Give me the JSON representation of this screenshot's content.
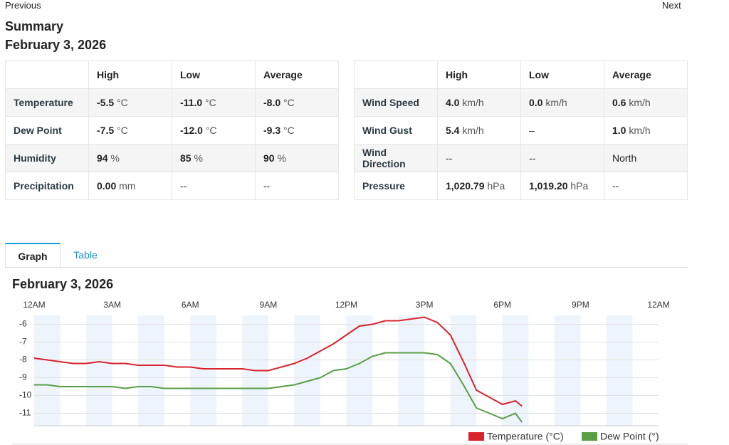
{
  "nav": {
    "previous": "Previous",
    "next": "Next"
  },
  "summary": {
    "title": "Summary",
    "date": "February 3, 2026"
  },
  "table_left": {
    "header": [
      "High",
      "Low",
      "Average"
    ],
    "rows": [
      {
        "label": "Temperature",
        "cells": [
          {
            "value": "-5.5",
            "unit": "°C"
          },
          {
            "value": "-11.0",
            "unit": "°C"
          },
          {
            "value": "-8.0",
            "unit": "°C"
          }
        ]
      },
      {
        "label": "Dew Point",
        "cells": [
          {
            "value": "-7.5",
            "unit": "°C"
          },
          {
            "value": "-12.0",
            "unit": "°C"
          },
          {
            "value": "-9.3",
            "unit": "°C"
          }
        ]
      },
      {
        "label": "Humidity",
        "cells": [
          {
            "value": "94",
            "unit": "%"
          },
          {
            "value": "85",
            "unit": "%"
          },
          {
            "value": "90",
            "unit": "%"
          }
        ]
      },
      {
        "label": "Precipitation",
        "cells": [
          {
            "value": "0.00",
            "unit": "mm"
          },
          {
            "value": "--"
          },
          {
            "value": "--"
          }
        ]
      }
    ]
  },
  "table_right": {
    "header": [
      "High",
      "Low",
      "Average"
    ],
    "rows": [
      {
        "label": "Wind Speed",
        "cells": [
          {
            "value": "4.0",
            "unit": "km/h"
          },
          {
            "value": "0.0",
            "unit": "km/h"
          },
          {
            "value": "0.6",
            "unit": "km/h"
          }
        ]
      },
      {
        "label": "Wind Gust",
        "cells": [
          {
            "value": "5.4",
            "unit": "km/h"
          },
          {
            "value": "–"
          },
          {
            "value": "1.0",
            "unit": "km/h"
          }
        ]
      },
      {
        "label": "Wind Direction",
        "cells": [
          {
            "value": "--"
          },
          {
            "value": "--"
          },
          {
            "value": "North"
          }
        ]
      },
      {
        "label": "Pressure",
        "cells": [
          {
            "value": "1,020.79",
            "unit": "hPa"
          },
          {
            "value": "1,019.20",
            "unit": "hPa"
          },
          {
            "value": "--"
          }
        ]
      }
    ]
  },
  "tabs": [
    "Graph",
    "Table"
  ],
  "graph": {
    "type": "line",
    "title": "February 3, 2026",
    "x": [
      0,
      0.5,
      1,
      1.5,
      2,
      2.5,
      3,
      3.5,
      4,
      4.5,
      5,
      5.5,
      6,
      6.5,
      7,
      7.5,
      8,
      8.5,
      9,
      9.5,
      10,
      10.5,
      11,
      11.5,
      12,
      12.5,
      13,
      13.5,
      14,
      14.5,
      15,
      15.5,
      16,
      16.5,
      17,
      17.5,
      18,
      18.5,
      18.75
    ],
    "xlim": [
      0,
      24
    ],
    "xticks": [
      {
        "value": 0,
        "label": "12AM"
      },
      {
        "value": 3,
        "label": "3AM"
      },
      {
        "value": 6,
        "label": "6AM"
      },
      {
        "value": 9,
        "label": "9AM"
      },
      {
        "value": 12,
        "label": "12PM"
      },
      {
        "value": 15,
        "label": "3PM"
      },
      {
        "value": 18,
        "label": "6PM"
      },
      {
        "value": 21,
        "label": "9PM"
      },
      {
        "value": 24,
        "label": "12AM"
      }
    ],
    "ylim": [
      -11.7,
      -5.5
    ],
    "yticks": [
      -6,
      -7,
      -8,
      -9,
      -10,
      -11
    ],
    "grid": true,
    "series": [
      {
        "name": "Temperature (°C)",
        "color": "#d9232d",
        "values": [
          -7.9,
          -8.0,
          -8.1,
          -8.2,
          -8.2,
          -8.1,
          -8.2,
          -8.2,
          -8.3,
          -8.3,
          -8.3,
          -8.4,
          -8.4,
          -8.5,
          -8.5,
          -8.5,
          -8.5,
          -8.6,
          -8.6,
          -8.4,
          -8.2,
          -7.9,
          -7.5,
          -7.1,
          -6.6,
          -6.1,
          -6.0,
          -5.8,
          -5.8,
          -5.7,
          -5.6,
          -5.9,
          -6.6,
          -8.1,
          -9.7,
          -10.1,
          -10.5,
          -10.3,
          -10.6
        ]
      },
      {
        "name": "Dew Point (°)",
        "color": "#5a9e45",
        "values": [
          -9.4,
          -9.4,
          -9.5,
          -9.5,
          -9.5,
          -9.5,
          -9.5,
          -9.6,
          -9.5,
          -9.5,
          -9.6,
          -9.6,
          -9.6,
          -9.6,
          -9.6,
          -9.6,
          -9.6,
          -9.6,
          -9.6,
          -9.5,
          -9.4,
          -9.2,
          -9.0,
          -8.6,
          -8.5,
          -8.2,
          -7.8,
          -7.6,
          -7.6,
          -7.6,
          -7.6,
          -7.7,
          -8.2,
          -9.4,
          -10.7,
          -11.0,
          -11.3,
          -11.0,
          -11.5
        ]
      }
    ]
  }
}
